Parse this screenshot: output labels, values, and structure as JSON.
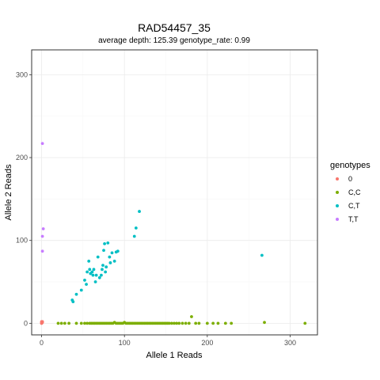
{
  "chart_data": {
    "type": "scatter",
    "title": "RAD54457_35",
    "subtitle": "average depth:  125.39  genotype_rate:  0.99",
    "xlabel": "Allele 1 Reads",
    "ylabel": "Allele 2 Reads",
    "xlim": [
      -12,
      333
    ],
    "ylim": [
      -14,
      330
    ],
    "xticks": [
      0,
      100,
      200,
      300
    ],
    "yticks": [
      0,
      100,
      200,
      300
    ],
    "grid": true,
    "legend": {
      "title": "genotypes",
      "placement": "right",
      "entries": [
        "0",
        "C,C",
        "C,T",
        "T,T"
      ]
    },
    "colors": {
      "0": "#F8766D",
      "C,C": "#7CAE00",
      "C,T": "#00BFC4",
      "T,T": "#C77CFF"
    },
    "series": [
      {
        "name": "0",
        "points": [
          [
            0,
            0
          ],
          [
            0,
            1
          ],
          [
            1,
            2
          ],
          [
            0,
            2
          ],
          [
            1,
            1
          ],
          [
            0,
            0
          ]
        ]
      },
      {
        "name": "C,C",
        "points": [
          [
            20,
            0
          ],
          [
            24,
            0
          ],
          [
            28,
            0
          ],
          [
            33,
            0
          ],
          [
            42,
            0
          ],
          [
            48,
            0
          ],
          [
            52,
            0
          ],
          [
            55,
            0
          ],
          [
            58,
            0
          ],
          [
            60,
            0
          ],
          [
            62,
            0
          ],
          [
            64,
            0
          ],
          [
            66,
            0
          ],
          [
            68,
            0
          ],
          [
            70,
            0
          ],
          [
            72,
            0
          ],
          [
            74,
            0
          ],
          [
            76,
            0
          ],
          [
            78,
            0
          ],
          [
            80,
            0
          ],
          [
            82,
            0
          ],
          [
            84,
            0
          ],
          [
            86,
            0
          ],
          [
            88,
            1
          ],
          [
            90,
            0
          ],
          [
            92,
            0
          ],
          [
            94,
            0
          ],
          [
            96,
            0
          ],
          [
            98,
            0
          ],
          [
            100,
            1
          ],
          [
            102,
            0
          ],
          [
            104,
            0
          ],
          [
            106,
            0
          ],
          [
            108,
            0
          ],
          [
            110,
            0
          ],
          [
            112,
            0
          ],
          [
            114,
            0
          ],
          [
            116,
            0
          ],
          [
            118,
            0
          ],
          [
            120,
            0
          ],
          [
            122,
            0
          ],
          [
            124,
            0
          ],
          [
            126,
            0
          ],
          [
            128,
            0
          ],
          [
            130,
            0
          ],
          [
            132,
            0
          ],
          [
            134,
            0
          ],
          [
            136,
            0
          ],
          [
            138,
            0
          ],
          [
            140,
            0
          ],
          [
            142,
            0
          ],
          [
            144,
            0
          ],
          [
            146,
            0
          ],
          [
            148,
            0
          ],
          [
            150,
            0
          ],
          [
            152,
            0
          ],
          [
            154,
            0
          ],
          [
            157,
            0
          ],
          [
            160,
            0
          ],
          [
            163,
            0
          ],
          [
            166,
            0
          ],
          [
            170,
            0
          ],
          [
            174,
            0
          ],
          [
            178,
            0
          ],
          [
            181,
            8
          ],
          [
            186,
            0
          ],
          [
            190,
            0
          ],
          [
            200,
            0
          ],
          [
            207,
            0
          ],
          [
            213,
            0
          ],
          [
            222,
            0
          ],
          [
            229,
            0
          ],
          [
            269,
            1
          ],
          [
            318,
            0
          ]
        ]
      },
      {
        "name": "C,T",
        "points": [
          [
            37,
            28
          ],
          [
            38,
            26
          ],
          [
            42,
            35
          ],
          [
            48,
            40
          ],
          [
            52,
            52
          ],
          [
            54,
            47
          ],
          [
            55,
            62
          ],
          [
            57,
            75
          ],
          [
            58,
            65
          ],
          [
            59,
            60
          ],
          [
            61,
            62
          ],
          [
            62,
            58
          ],
          [
            63,
            65
          ],
          [
            65,
            50
          ],
          [
            66,
            58
          ],
          [
            68,
            80
          ],
          [
            70,
            55
          ],
          [
            72,
            58
          ],
          [
            73,
            65
          ],
          [
            74,
            70
          ],
          [
            75,
            88
          ],
          [
            76,
            96
          ],
          [
            77,
            62
          ],
          [
            78,
            68
          ],
          [
            80,
            97
          ],
          [
            82,
            80
          ],
          [
            83,
            73
          ],
          [
            85,
            85
          ],
          [
            88,
            75
          ],
          [
            90,
            86
          ],
          [
            92,
            87
          ],
          [
            112,
            105
          ],
          [
            114,
            115
          ],
          [
            118,
            135
          ],
          [
            266,
            82
          ]
        ]
      },
      {
        "name": "T,T",
        "points": [
          [
            1,
            217
          ],
          [
            2,
            114
          ],
          [
            1,
            105
          ],
          [
            1,
            87
          ]
        ]
      }
    ]
  }
}
